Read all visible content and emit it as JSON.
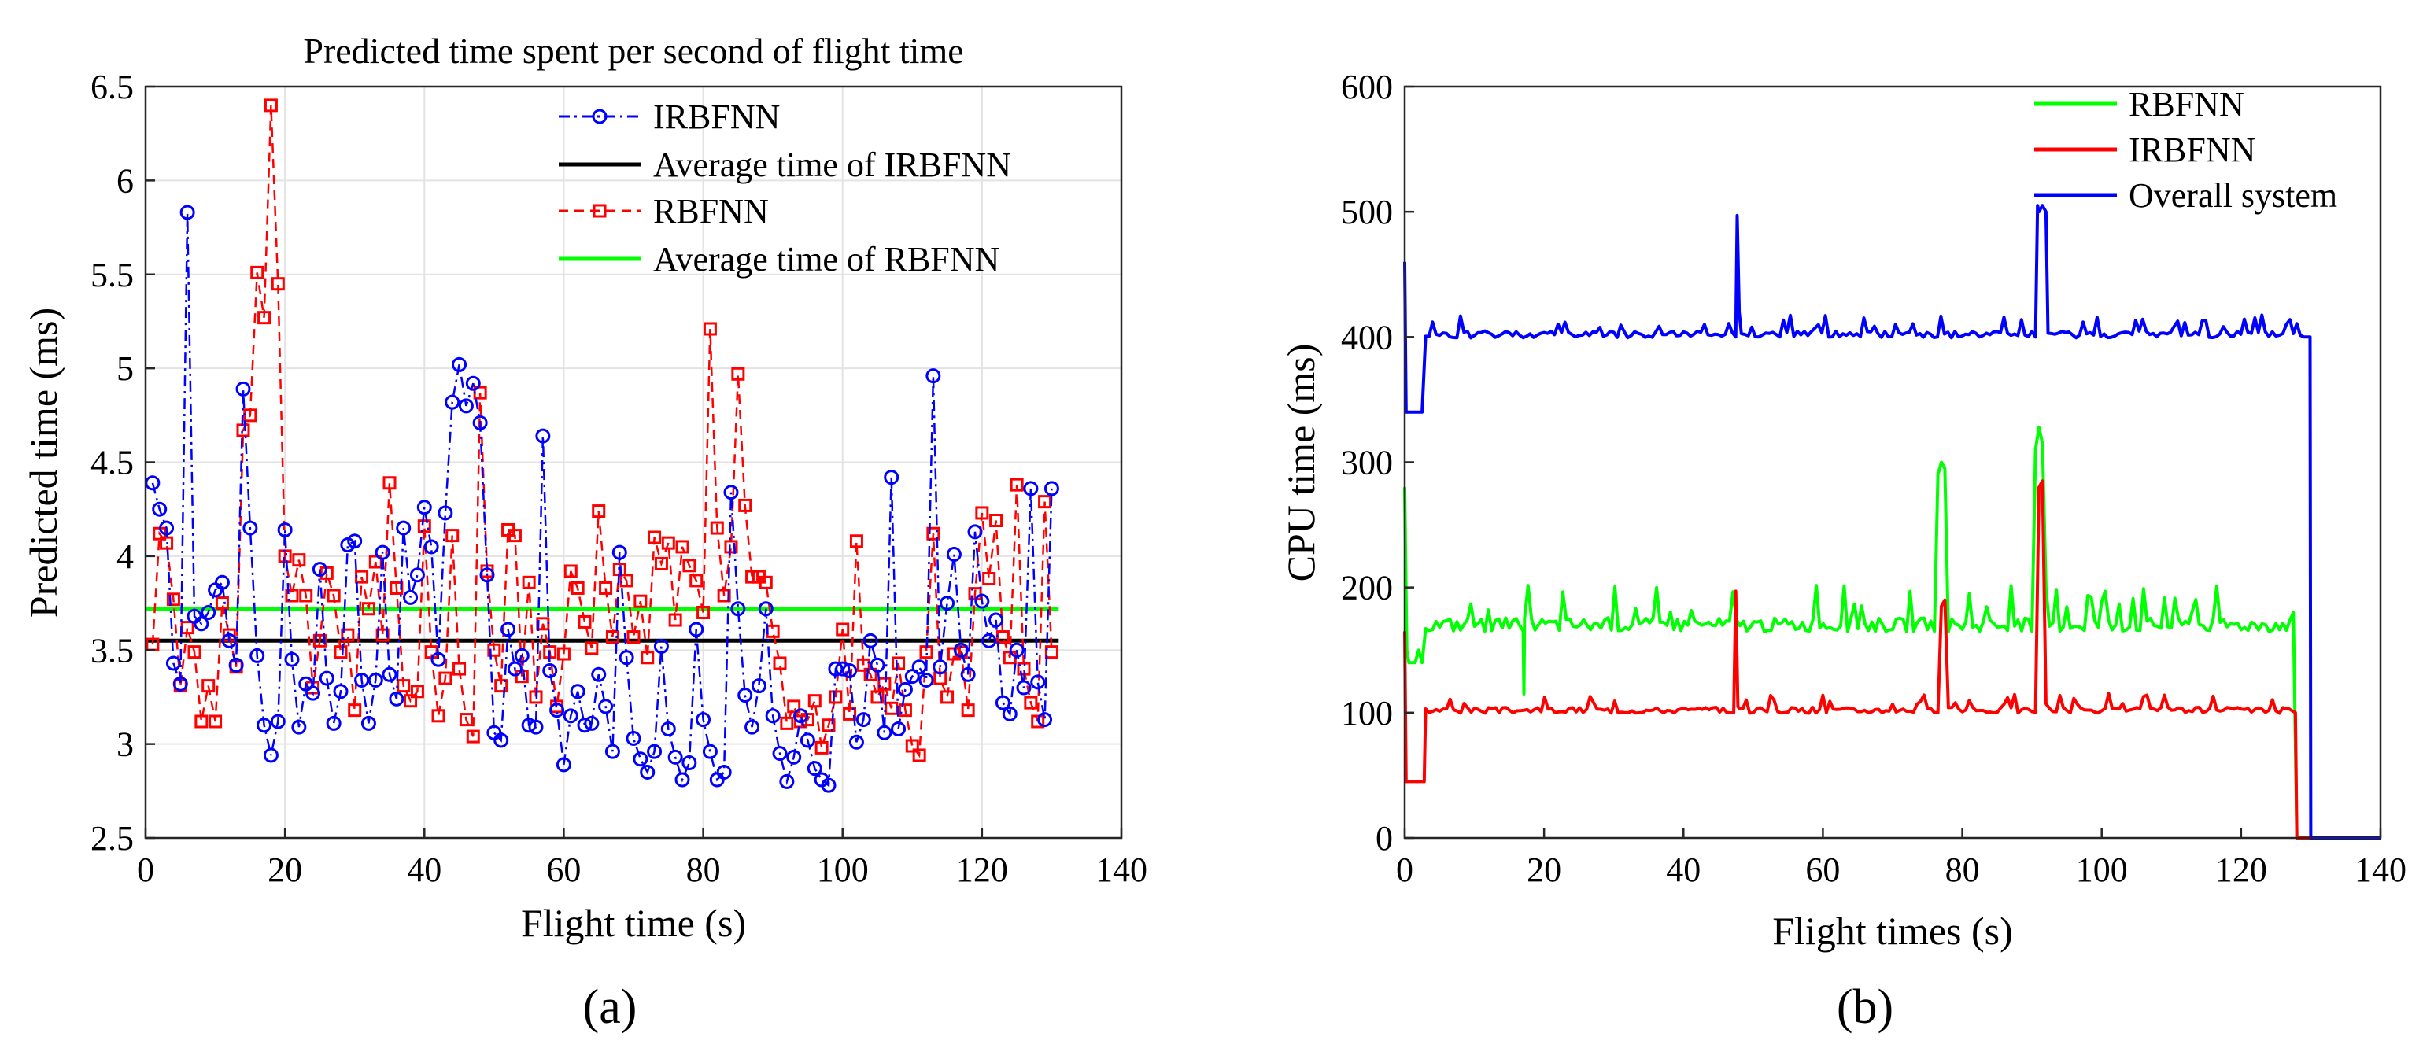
{
  "chart_data": [
    {
      "panel_label": "(a)",
      "type": "line",
      "title": "Predicted time spent per second of flight time",
      "xlabel": "Flight time (s)",
      "ylabel": "Predicted time (ms)",
      "xlim": [
        0,
        140
      ],
      "ylim": [
        2.5,
        6.5
      ],
      "xticks": [
        0,
        20,
        40,
        60,
        80,
        100,
        120,
        140
      ],
      "yticks": [
        2.5,
        3,
        3.5,
        4,
        4.5,
        5,
        5.5,
        6,
        6.5
      ],
      "grid": true,
      "legend_position": "top-right",
      "series": [
        {
          "name": "IRBFNN",
          "color": "#0000ff",
          "style": "dash-dot",
          "marker": "circle",
          "x": [
            1,
            2,
            3,
            4,
            5,
            6,
            7,
            8,
            9,
            10,
            11,
            12,
            13,
            14,
            15,
            16,
            17,
            18,
            19,
            20,
            21,
            22,
            23,
            24,
            25,
            26,
            27,
            28,
            29,
            30,
            31,
            32,
            33,
            34,
            35,
            36,
            37,
            38,
            39,
            40,
            41,
            42,
            43,
            44,
            45,
            46,
            47,
            48,
            49,
            50,
            51,
            52,
            53,
            54,
            55,
            56,
            57,
            58,
            59,
            60,
            61,
            62,
            63,
            64,
            65,
            66,
            67,
            68,
            69,
            70,
            71,
            72,
            73,
            74,
            75,
            76,
            77,
            78,
            79,
            80,
            81,
            82,
            83,
            84,
            85,
            86,
            87,
            88,
            89,
            90,
            91,
            92,
            93,
            94,
            95,
            96,
            97,
            98,
            99,
            100,
            101,
            102,
            103,
            104,
            105,
            106,
            107,
            108,
            109,
            110,
            111,
            112,
            113,
            114,
            115,
            116,
            117,
            118,
            119,
            120,
            121,
            122,
            123,
            124,
            125,
            126,
            127,
            128,
            129,
            130
          ],
          "y": [
            4.39,
            4.25,
            4.15,
            3.43,
            3.32,
            5.83,
            3.68,
            3.64,
            3.7,
            3.82,
            3.86,
            3.55,
            3.42,
            4.89,
            4.15,
            3.47,
            3.1,
            2.94,
            3.12,
            4.14,
            3.45,
            3.09,
            3.32,
            3.27,
            3.93,
            3.35,
            3.11,
            3.28,
            4.06,
            4.08,
            3.34,
            3.11,
            3.34,
            4.02,
            3.37,
            3.24,
            4.15,
            3.78,
            3.9,
            4.26,
            4.05,
            3.45,
            4.23,
            4.82,
            5.02,
            4.8,
            4.92,
            4.71,
            3.9,
            3.06,
            3.02,
            3.61,
            3.4,
            3.47,
            3.1,
            3.09,
            4.64,
            3.39,
            3.18,
            2.89,
            3.15,
            3.28,
            3.1,
            3.11,
            3.37,
            3.2,
            2.96,
            4.02,
            3.46,
            3.03,
            2.92,
            2.85,
            2.96,
            3.52,
            3.08,
            2.93,
            2.81,
            2.9,
            3.61,
            3.13,
            2.96,
            2.81,
            2.85,
            4.34,
            3.72,
            3.26,
            3.09,
            3.31,
            3.72,
            3.15,
            2.95,
            2.8,
            2.93,
            3.15,
            3.02,
            2.87,
            2.81,
            2.78,
            3.4,
            3.4,
            3.39,
            3.01,
            3.13,
            3.55,
            3.42,
            3.06,
            4.42,
            3.08,
            3.29,
            3.36,
            3.41,
            3.34,
            4.96,
            3.41,
            3.75,
            4.01,
            3.5,
            3.37,
            4.13,
            3.76,
            3.55,
            3.66,
            3.22,
            3.16,
            3.5,
            3.3,
            4.36,
            3.33,
            3.13,
            4.36
          ]
        },
        {
          "name": "Average time of IRBFNN",
          "color": "#000000",
          "style": "solid",
          "x": [
            0,
            131
          ],
          "y": [
            3.55,
            3.55
          ]
        },
        {
          "name": "RBFNN",
          "color": "#ff0000",
          "style": "dashed",
          "marker": "square",
          "x": [
            1,
            2,
            3,
            4,
            5,
            6,
            7,
            8,
            9,
            10,
            11,
            12,
            13,
            14,
            15,
            16,
            17,
            18,
            19,
            20,
            21,
            22,
            23,
            24,
            25,
            26,
            27,
            28,
            29,
            30,
            31,
            32,
            33,
            34,
            35,
            36,
            37,
            38,
            39,
            40,
            41,
            42,
            43,
            44,
            45,
            46,
            47,
            48,
            49,
            50,
            51,
            52,
            53,
            54,
            55,
            56,
            57,
            58,
            59,
            60,
            61,
            62,
            63,
            64,
            65,
            66,
            67,
            68,
            69,
            70,
            71,
            72,
            73,
            74,
            75,
            76,
            77,
            78,
            79,
            80,
            81,
            82,
            83,
            84,
            85,
            86,
            87,
            88,
            89,
            90,
            91,
            92,
            93,
            94,
            95,
            96,
            97,
            98,
            99,
            100,
            101,
            102,
            103,
            104,
            105,
            106,
            107,
            108,
            109,
            110,
            111,
            112,
            113,
            114,
            115,
            116,
            117,
            118,
            119,
            120,
            121,
            122,
            123,
            124,
            125,
            126,
            127,
            128,
            129,
            130
          ],
          "y": [
            3.53,
            4.12,
            4.07,
            3.77,
            3.31,
            3.62,
            3.49,
            3.12,
            3.31,
            3.12,
            3.75,
            3.58,
            3.41,
            4.67,
            4.75,
            5.51,
            5.27,
            6.4,
            5.45,
            4.0,
            3.79,
            3.98,
            3.79,
            3.3,
            3.55,
            3.91,
            3.79,
            3.49,
            3.58,
            3.18,
            3.89,
            3.72,
            3.97,
            3.58,
            4.39,
            3.83,
            3.31,
            3.23,
            3.28,
            4.16,
            3.49,
            3.15,
            3.35,
            4.11,
            3.4,
            3.13,
            3.04,
            4.87,
            3.92,
            3.5,
            3.31,
            4.14,
            4.11,
            3.36,
            3.86,
            3.25,
            3.64,
            3.49,
            3.2,
            3.48,
            3.92,
            3.83,
            3.65,
            3.51,
            4.24,
            3.83,
            3.57,
            3.93,
            3.87,
            3.57,
            3.76,
            3.46,
            4.1,
            3.96,
            4.07,
            3.66,
            4.05,
            3.95,
            3.87,
            3.7,
            5.21,
            4.15,
            3.79,
            4.05,
            4.97,
            4.27,
            3.89,
            3.89,
            3.86,
            3.6,
            3.43,
            3.11,
            3.2,
            3.12,
            3.13,
            3.23,
            2.98,
            3.1,
            3.25,
            3.61,
            3.16,
            4.08,
            3.42,
            3.37,
            3.25,
            3.32,
            3.19,
            3.43,
            3.18,
            2.99,
            2.94,
            3.49,
            4.12,
            3.35,
            3.25,
            3.48,
            3.49,
            3.18,
            3.8,
            4.23,
            3.88,
            4.19,
            3.57,
            3.46,
            4.38,
            3.4,
            3.22,
            3.12,
            4.29,
            3.49
          ]
        },
        {
          "name": "Average time of RBFNN",
          "color": "#00ff00",
          "style": "solid",
          "x": [
            0,
            131
          ],
          "y": [
            3.72,
            3.72
          ]
        }
      ]
    },
    {
      "panel_label": "(b)",
      "type": "line",
      "title": "",
      "xlabel": "Flight times (s)",
      "ylabel": "CPU time (ms)",
      "xlim": [
        0,
        140
      ],
      "ylim": [
        0,
        600
      ],
      "xticks": [
        0,
        20,
        40,
        60,
        80,
        100,
        120,
        140
      ],
      "yticks": [
        0,
        100,
        200,
        300,
        400,
        500,
        600
      ],
      "grid": false,
      "legend_position": "top-right",
      "series": [
        {
          "name": "RBFNN",
          "color": "#00ff00",
          "style": "solid",
          "baseline": 168,
          "jitter": 14,
          "x": [
            0,
            0.3,
            0.6,
            1.5,
            2,
            2.5,
            3,
            17,
            17.1,
            17.2,
            76,
            76.5,
            77,
            77.5,
            78,
            90,
            90.5,
            91,
            91.5,
            92,
            126,
            127.5,
            128,
            128.3,
            130,
            140
          ],
          "y": [
            280,
            150,
            140,
            140,
            150,
            140,
            165,
            165,
            115,
            165,
            165,
            290,
            300,
            295,
            165,
            165,
            310,
            328,
            315,
            165,
            165,
            180,
            0,
            0,
            0,
            0
          ]
        },
        {
          "name": "IRBFNN",
          "color": "#ff0000",
          "style": "solid",
          "baseline": 101,
          "jitter": 6,
          "x": [
            0,
            0.2,
            0.5,
            2.8,
            3,
            47.2,
            47.5,
            47.8,
            48,
            76.5,
            77,
            77.5,
            78,
            90.5,
            91,
            91.5,
            92,
            126,
            127.8,
            128,
            130,
            140
          ],
          "y": [
            165,
            45,
            45,
            45,
            100,
            100,
            197,
            105,
            100,
            100,
            185,
            190,
            100,
            100,
            280,
            285,
            100,
            100,
            100,
            0,
            0,
            0
          ]
        },
        {
          "name": "Overall system",
          "color": "#0000ff",
          "style": "solid",
          "baseline": 401,
          "jitter": 7,
          "x": [
            0,
            0.2,
            0.5,
            2.5,
            3,
            47.5,
            47.7,
            48,
            48.3,
            90.5,
            90.8,
            91,
            91.5,
            92,
            92.3,
            126,
            129.5,
            129.9,
            130,
            140
          ],
          "y": [
            460,
            340,
            340,
            340,
            400,
            400,
            497,
            420,
            400,
            400,
            505,
            500,
            505,
            500,
            400,
            400,
            400,
            400,
            0,
            0
          ]
        }
      ]
    }
  ]
}
